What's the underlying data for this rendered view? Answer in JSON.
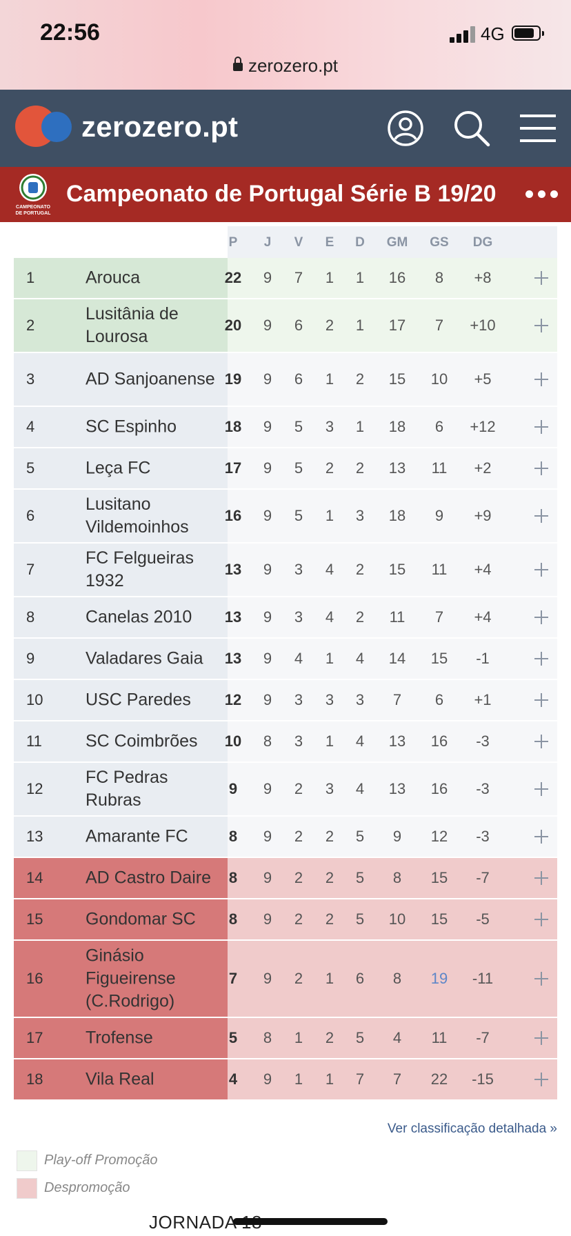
{
  "status_bar": {
    "time": "22:56",
    "network": "4G"
  },
  "browser": {
    "url": "zerozero.pt"
  },
  "site": {
    "brand": "zerozero.pt",
    "icons": [
      "user-icon",
      "search-icon",
      "menu-icon"
    ]
  },
  "competition": {
    "title": "Campeonato de Portugal Série B 19/20",
    "logo_text": [
      "CAMPEONATO",
      "DE PORTUGAL"
    ]
  },
  "table": {
    "columns": [
      "P",
      "J",
      "V",
      "E",
      "D",
      "GM",
      "GS",
      "DG"
    ],
    "rows": [
      {
        "pos": "1",
        "team": "Arouca",
        "P": "22",
        "J": "9",
        "V": "7",
        "E": "1",
        "D": "1",
        "GM": "16",
        "GS": "8",
        "DG": "+8",
        "zone": "promo"
      },
      {
        "pos": "2",
        "team": "Lusitânia de Lourosa",
        "P": "20",
        "J": "9",
        "V": "6",
        "E": "2",
        "D": "1",
        "GM": "17",
        "GS": "7",
        "DG": "+10",
        "zone": "promo"
      },
      {
        "pos": "3",
        "team": "AD Sanjoanense",
        "P": "19",
        "J": "9",
        "V": "6",
        "E": "1",
        "D": "2",
        "GM": "15",
        "GS": "10",
        "DG": "+5",
        "zone": "neutral"
      },
      {
        "pos": "4",
        "team": "SC Espinho",
        "P": "18",
        "J": "9",
        "V": "5",
        "E": "3",
        "D": "1",
        "GM": "18",
        "GS": "6",
        "DG": "+12",
        "zone": "neutral"
      },
      {
        "pos": "5",
        "team": "Leça FC",
        "P": "17",
        "J": "9",
        "V": "5",
        "E": "2",
        "D": "2",
        "GM": "13",
        "GS": "11",
        "DG": "+2",
        "zone": "neutral"
      },
      {
        "pos": "6",
        "team": "Lusitano Vildemoinhos",
        "P": "16",
        "J": "9",
        "V": "5",
        "E": "1",
        "D": "3",
        "GM": "18",
        "GS": "9",
        "DG": "+9",
        "zone": "neutral"
      },
      {
        "pos": "7",
        "team": "FC Felgueiras 1932",
        "P": "13",
        "J": "9",
        "V": "3",
        "E": "4",
        "D": "2",
        "GM": "15",
        "GS": "11",
        "DG": "+4",
        "zone": "neutral"
      },
      {
        "pos": "8",
        "team": "Canelas 2010",
        "P": "13",
        "J": "9",
        "V": "3",
        "E": "4",
        "D": "2",
        "GM": "11",
        "GS": "7",
        "DG": "+4",
        "zone": "neutral"
      },
      {
        "pos": "9",
        "team": "Valadares Gaia",
        "P": "13",
        "J": "9",
        "V": "4",
        "E": "1",
        "D": "4",
        "GM": "14",
        "GS": "15",
        "DG": "-1",
        "zone": "neutral"
      },
      {
        "pos": "10",
        "team": "USC Paredes",
        "P": "12",
        "J": "9",
        "V": "3",
        "E": "3",
        "D": "3",
        "GM": "7",
        "GS": "6",
        "DG": "+1",
        "zone": "neutral"
      },
      {
        "pos": "11",
        "team": "SC Coimbrões",
        "P": "10",
        "J": "8",
        "V": "3",
        "E": "1",
        "D": "4",
        "GM": "13",
        "GS": "16",
        "DG": "-3",
        "zone": "neutral"
      },
      {
        "pos": "12",
        "team": "FC Pedras Rubras",
        "P": "9",
        "J": "9",
        "V": "2",
        "E": "3",
        "D": "4",
        "GM": "13",
        "GS": "16",
        "DG": "-3",
        "zone": "neutral"
      },
      {
        "pos": "13",
        "team": "Amarante FC",
        "P": "8",
        "J": "9",
        "V": "2",
        "E": "2",
        "D": "5",
        "GM": "9",
        "GS": "12",
        "DG": "-3",
        "zone": "neutral"
      },
      {
        "pos": "14",
        "team": "AD Castro Daire",
        "P": "8",
        "J": "9",
        "V": "2",
        "E": "2",
        "D": "5",
        "GM": "8",
        "GS": "15",
        "DG": "-7",
        "zone": "releg"
      },
      {
        "pos": "15",
        "team": "Gondomar SC",
        "P": "8",
        "J": "9",
        "V": "2",
        "E": "2",
        "D": "5",
        "GM": "10",
        "GS": "15",
        "DG": "-5",
        "zone": "releg"
      },
      {
        "pos": "16",
        "team": "Ginásio Figueirense (C.Rodrigo)",
        "P": "7",
        "J": "9",
        "V": "2",
        "E": "1",
        "D": "6",
        "GM": "8",
        "GS": "19",
        "DG": "-11",
        "zone": "releg",
        "highlight": "GS"
      },
      {
        "pos": "17",
        "team": "Trofense",
        "P": "5",
        "J": "8",
        "V": "1",
        "E": "2",
        "D": "5",
        "GM": "4",
        "GS": "11",
        "DG": "-7",
        "zone": "releg"
      },
      {
        "pos": "18",
        "team": "Vila Real",
        "P": "4",
        "J": "9",
        "V": "1",
        "E": "1",
        "D": "7",
        "GM": "7",
        "GS": "22",
        "DG": "-15",
        "zone": "releg"
      }
    ]
  },
  "detail_link": "Ver classificação detalhada »",
  "legend": [
    {
      "label": "Play-off Promoção",
      "color": "#eef6ec"
    },
    {
      "label": "Despromoção",
      "color": "#f0cbcb"
    }
  ],
  "next_section": "JORNADA 18",
  "colors": {
    "header": "#3f4f63",
    "competition_bar": "#a52a24",
    "promo": "#d6e8d6",
    "releg": "#d67979"
  }
}
